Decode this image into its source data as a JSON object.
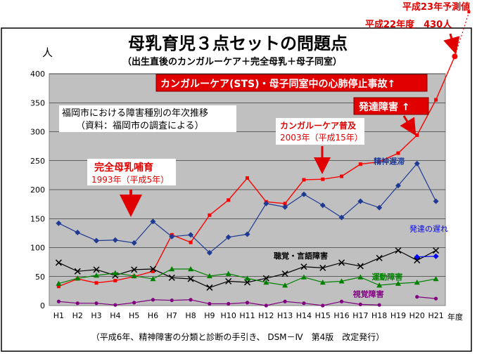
{
  "header": {
    "title": "母乳育児３点セットの問題点",
    "subtitle": "（出生直後のカンガルーケア＋完全母乳＋母子同室）"
  },
  "footnote": "（平成6年、精神障害の分類と診断の手引き、 DSM－Ⅳ　第4版　改定発行）",
  "colors": {
    "accent_red": "#ff0000",
    "banner_red": "#e00000",
    "developmental": "#ff0000",
    "mental_retardation": "#1f3a93",
    "hearing_speech": "#000000",
    "motor": "#008000",
    "visual": "#800080",
    "developmental_delay": "#0000ff",
    "plot_bg": "#c0c0c0"
  },
  "chart_data": {
    "type": "line",
    "title": "福岡市における障害種別の年次推移",
    "subtitle": "（資料：福岡市の調査による）",
    "ylabel": "人",
    "xlabel": "年度",
    "ylim": [
      0,
      400
    ],
    "yticks": [
      0,
      50,
      100,
      150,
      200,
      250,
      300,
      350,
      400
    ],
    "grid": true,
    "categories": [
      "H1",
      "H2",
      "H3",
      "H4",
      "H5",
      "H6",
      "H7",
      "H8",
      "H9",
      "H10",
      "H11",
      "H12",
      "H13",
      "H14",
      "H15",
      "H16",
      "H17",
      "H18",
      "H19",
      "H20",
      "H21"
    ],
    "series": [
      {
        "key": "developmental",
        "name": "",
        "values": [
          33,
          46,
          39,
          43,
          50,
          59,
          122,
          109,
          156,
          182,
          220,
          179,
          176,
          217,
          218,
          223,
          244,
          248,
          263,
          294,
          355
        ]
      },
      {
        "key": "mental_retardation",
        "name": "精神遅滞",
        "values": [
          142,
          126,
          112,
          113,
          108,
          145,
          119,
          122,
          91,
          118,
          123,
          176,
          170,
          192,
          173,
          152,
          180,
          169,
          207,
          245,
          180
        ]
      },
      {
        "key": "hearing_speech",
        "name": "聴覚・言語障害",
        "values": [
          74,
          59,
          62,
          52,
          62,
          63,
          48,
          46,
          31,
          42,
          40,
          47,
          55,
          67,
          65,
          74,
          68,
          82,
          95,
          78,
          95
        ]
      },
      {
        "key": "motor",
        "name": "運動障害",
        "values": [
          38,
          47,
          52,
          56,
          51,
          46,
          63,
          63,
          51,
          55,
          47,
          40,
          35,
          49,
          40,
          42,
          49,
          35,
          38,
          40,
          46
        ]
      },
      {
        "key": "visual",
        "name": "視覚障害",
        "values": [
          7,
          4,
          4,
          1,
          5,
          10,
          9,
          10,
          3,
          3,
          5,
          0,
          7,
          4,
          0,
          7,
          2,
          1,
          null,
          15,
          12
        ]
      },
      {
        "key": "developmental_delay",
        "name": "発達の遅れ",
        "values": [
          null,
          null,
          null,
          null,
          null,
          null,
          null,
          null,
          null,
          null,
          null,
          null,
          null,
          null,
          null,
          null,
          null,
          null,
          null,
          84,
          85
        ]
      }
    ],
    "projection": {
      "from_x": "H21",
      "from_value": 355,
      "label_h22": "平成22年度　430人",
      "value_h22": 430,
      "label_h23": "平成23年予測値"
    },
    "annotations": {
      "sts": "カンガルーケア(STS)・母子同室中の心肺停止事故↑",
      "developmental": "発達障害 ↑",
      "kangaroo_label": "カンガルーケア普及",
      "kangaroo_year": "2003年（平成15年）",
      "breastfeeding_label": "完全母乳哺育",
      "breastfeeding_year": "1993年（平成5年）"
    }
  }
}
